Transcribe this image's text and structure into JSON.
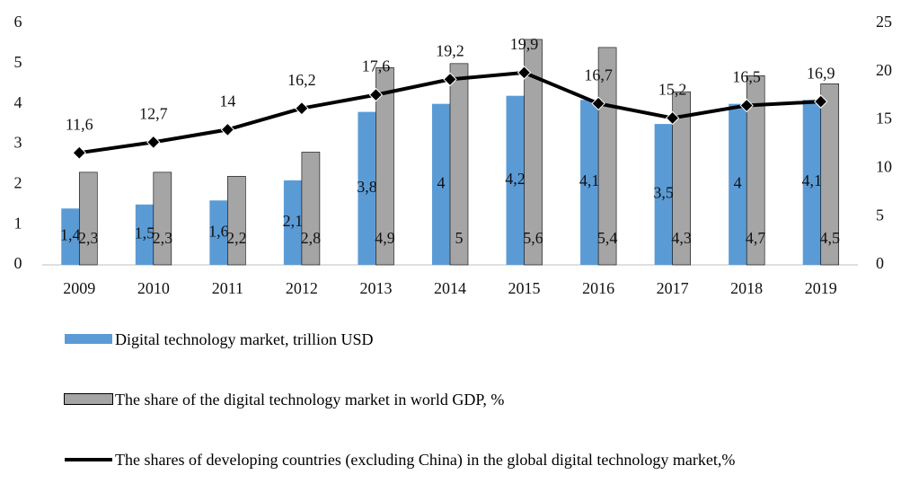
{
  "chart_data": {
    "type": "combo",
    "categories": [
      "2009",
      "2010",
      "2011",
      "2012",
      "2013",
      "2014",
      "2015",
      "2016",
      "2017",
      "2018",
      "2019"
    ],
    "series": [
      {
        "name": "Digital technology market, trillion USD",
        "type": "bar",
        "color": "#5b9bd5",
        "values": [
          1.4,
          1.5,
          1.6,
          2.1,
          3.8,
          4,
          4.2,
          4.1,
          3.5,
          4,
          4.1
        ],
        "value_labels": [
          "1,4",
          "1,5",
          "1,6",
          "2,1",
          "3,8",
          "4",
          "4,2",
          "4,1",
          "3,5",
          "4",
          "4,1"
        ]
      },
      {
        "name": "The share of the digital technology market in world GDP, %",
        "type": "bar",
        "color": "#a5a5a5",
        "values": [
          2.3,
          2.3,
          2.2,
          2.8,
          4.9,
          5,
          5.6,
          5.4,
          4.3,
          4.7,
          4.5
        ],
        "value_labels": [
          "2,3",
          "2,3",
          "2,2",
          "2,8",
          "4,9",
          "5",
          "5,6",
          "5,4",
          "4,3",
          "4,7",
          "4,5"
        ]
      },
      {
        "name": "The shares of developing countries (excluding China) in the global digital technology market,%",
        "type": "line",
        "axis": "y2",
        "color": "#000000",
        "values": [
          11.6,
          12.7,
          14,
          16.2,
          17.6,
          19.2,
          19.9,
          16.7,
          15.2,
          16.5,
          16.9
        ],
        "value_labels": [
          "11,6",
          "12,7",
          "14",
          "16,2",
          "17,6",
          "19,2",
          "19,9",
          "16,7",
          "15,2",
          "16,5",
          "16,9"
        ]
      }
    ],
    "ylim": [
      0,
      6
    ],
    "yticks": [
      0,
      1,
      2,
      3,
      4,
      5,
      6
    ],
    "y2lim": [
      0,
      25
    ],
    "y2ticks": [
      0,
      5,
      10,
      15,
      20,
      25
    ],
    "grid": false,
    "legend": "bottom"
  }
}
